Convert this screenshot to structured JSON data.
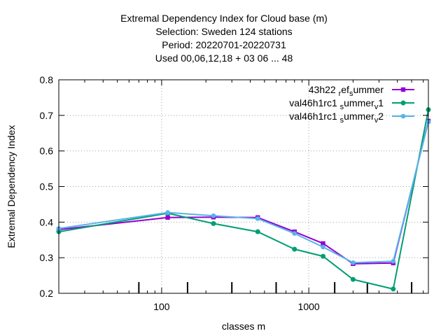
{
  "chart_data": {
    "type": "line",
    "title_lines": [
      "Extremal Dependency Index  for Cloud base (m)",
      "Selection: Sweden    124 stations",
      "Period: 20220701-20220731",
      "Used  00,06,12,18  + 03 06 ... 48"
    ],
    "xlabel": "classes m",
    "ylabel": "Extremal Dependency Index",
    "xscale": "log",
    "xlim": [
      20,
      6500
    ],
    "ylim": [
      0.2,
      0.8
    ],
    "x_ticks": [
      {
        "value": 100,
        "label": "100"
      },
      {
        "value": 1000,
        "label": "1000"
      }
    ],
    "y_ticks": [
      {
        "value": 0.2,
        "label": "0.2"
      },
      {
        "value": 0.3,
        "label": "0.3"
      },
      {
        "value": 0.4,
        "label": "0.4"
      },
      {
        "value": 0.5,
        "label": "0.5"
      },
      {
        "value": 0.6,
        "label": "0.6"
      },
      {
        "value": 0.7,
        "label": "0.7"
      },
      {
        "value": 0.8,
        "label": "0.8"
      }
    ],
    "grid": true,
    "legend_position": "top-right",
    "class_ticks_x": [
      70,
      150,
      300,
      600,
      1500,
      2500,
      5000
    ],
    "series": [
      {
        "name": "43h22 ref summer",
        "legend_parts": [
          [
            "43h22 ",
            false
          ],
          [
            "r",
            true
          ],
          [
            "ef",
            false
          ],
          [
            "s",
            true
          ],
          [
            "ummer",
            false
          ]
        ],
        "color": "#9400d3",
        "marker": "square",
        "x": [
          20,
          110,
          225,
          450,
          800,
          1250,
          2000,
          3750,
          6500
        ],
        "y": [
          0.379,
          0.413,
          0.414,
          0.413,
          0.373,
          0.34,
          0.283,
          0.285,
          0.684
        ]
      },
      {
        "name": "val46h1rc1 summer v1",
        "legend_parts": [
          [
            "val46h1rc1 ",
            false
          ],
          [
            "s",
            true
          ],
          [
            "ummer",
            false
          ],
          [
            "v",
            true
          ],
          [
            "1",
            false
          ]
        ],
        "color": "#009e73",
        "marker": "circle",
        "x": [
          20,
          110,
          225,
          450,
          800,
          1250,
          2000,
          3750,
          6500
        ],
        "y": [
          0.373,
          0.425,
          0.396,
          0.373,
          0.324,
          0.304,
          0.239,
          0.212,
          0.716
        ]
      },
      {
        "name": "val46h1rc1 summer v2",
        "legend_parts": [
          [
            "val46h1rc1 ",
            false
          ],
          [
            "s",
            true
          ],
          [
            "ummer",
            false
          ],
          [
            "v",
            true
          ],
          [
            "2",
            false
          ]
        ],
        "color": "#56b4e9",
        "marker": "triangle",
        "x": [
          20,
          110,
          225,
          450,
          800,
          1250,
          2000,
          3750,
          6500
        ],
        "y": [
          0.382,
          0.427,
          0.418,
          0.41,
          0.368,
          0.33,
          0.286,
          0.29,
          0.682
        ]
      }
    ]
  }
}
